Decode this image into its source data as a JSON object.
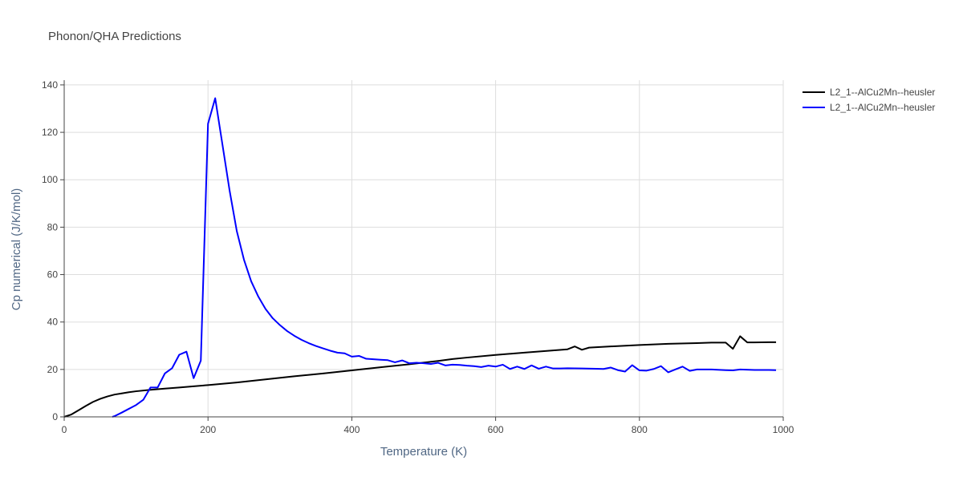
{
  "chart_data": {
    "type": "line",
    "title": "Phonon/QHA Predictions",
    "xlabel": "Temperature (K)",
    "ylabel": "Cp numerical (J/K/mol)",
    "xlim": [
      0,
      1000
    ],
    "ylim": [
      0,
      142
    ],
    "xticks": [
      0,
      200,
      400,
      600,
      800,
      1000
    ],
    "yticks": [
      0,
      20,
      40,
      60,
      80,
      100,
      120,
      140
    ],
    "grid": true,
    "legend_position": "top-right",
    "series": [
      {
        "name": "L2_1--AlCu2Mn--heusler",
        "color": "#000000",
        "x": [
          0,
          10,
          20,
          30,
          40,
          50,
          60,
          70,
          80,
          90,
          100,
          120,
          140,
          160,
          180,
          200,
          240,
          280,
          320,
          360,
          400,
          440,
          480,
          520,
          540,
          560,
          600,
          640,
          680,
          700,
          710,
          720,
          730,
          760,
          800,
          840,
          880,
          900,
          920,
          930,
          940,
          950,
          960,
          980,
          990
        ],
        "y": [
          0,
          1,
          2.8,
          4.6,
          6.3,
          7.6,
          8.6,
          9.4,
          9.9,
          10.4,
          10.8,
          11.4,
          11.9,
          12.4,
          12.9,
          13.4,
          14.5,
          15.8,
          17.1,
          18.3,
          19.6,
          20.9,
          22.2,
          23.6,
          24.4,
          25.0,
          26.1,
          27.1,
          28.0,
          28.5,
          29.7,
          28.3,
          29.2,
          29.7,
          30.3,
          30.8,
          31.1,
          31.3,
          31.3,
          28.7,
          34.0,
          31.4,
          31.4,
          31.5,
          31.5
        ]
      },
      {
        "name": "L2_1--AlCu2Mn--heusler",
        "color": "#0000ff",
        "x": [
          67,
          70,
          80,
          90,
          100,
          110,
          120,
          130,
          140,
          150,
          160,
          170,
          180,
          190,
          200,
          210,
          220,
          230,
          240,
          250,
          260,
          270,
          280,
          290,
          300,
          310,
          320,
          330,
          340,
          350,
          360,
          370,
          380,
          390,
          400,
          410,
          420,
          430,
          440,
          450,
          460,
          470,
          480,
          490,
          500,
          510,
          520,
          530,
          540,
          550,
          560,
          570,
          580,
          590,
          600,
          610,
          620,
          630,
          640,
          650,
          660,
          670,
          680,
          690,
          700,
          720,
          740,
          750,
          760,
          770,
          780,
          790,
          800,
          810,
          820,
          830,
          840,
          850,
          860,
          870,
          880,
          900,
          920,
          930,
          940,
          960,
          980,
          990
        ],
        "y": [
          0,
          0.3,
          1.8,
          3.4,
          5.0,
          7.2,
          12.4,
          12.4,
          18.3,
          20.5,
          26.2,
          27.5,
          16.3,
          23.7,
          123.6,
          134.4,
          115.0,
          95.5,
          78.4,
          66.3,
          57.2,
          50.7,
          45.5,
          41.6,
          38.7,
          36.2,
          34.2,
          32.5,
          31.1,
          29.9,
          28.9,
          27.9,
          27.1,
          26.8,
          25.4,
          25.7,
          24.5,
          24.3,
          24.1,
          23.9,
          23.0,
          23.8,
          22.6,
          22.8,
          22.6,
          22.3,
          22.8,
          21.7,
          22.0,
          21.9,
          21.6,
          21.4,
          21.0,
          21.6,
          21.2,
          22.0,
          20.2,
          21.2,
          20.2,
          21.7,
          20.3,
          21.2,
          20.4,
          20.4,
          20.5,
          20.4,
          20.3,
          20.2,
          20.8,
          19.7,
          19.1,
          21.8,
          19.6,
          19.5,
          20.2,
          21.4,
          18.8,
          20.0,
          21.2,
          19.4,
          20.0,
          20.0,
          19.7,
          19.6,
          20.0,
          19.8,
          19.8,
          19.7
        ]
      }
    ]
  }
}
